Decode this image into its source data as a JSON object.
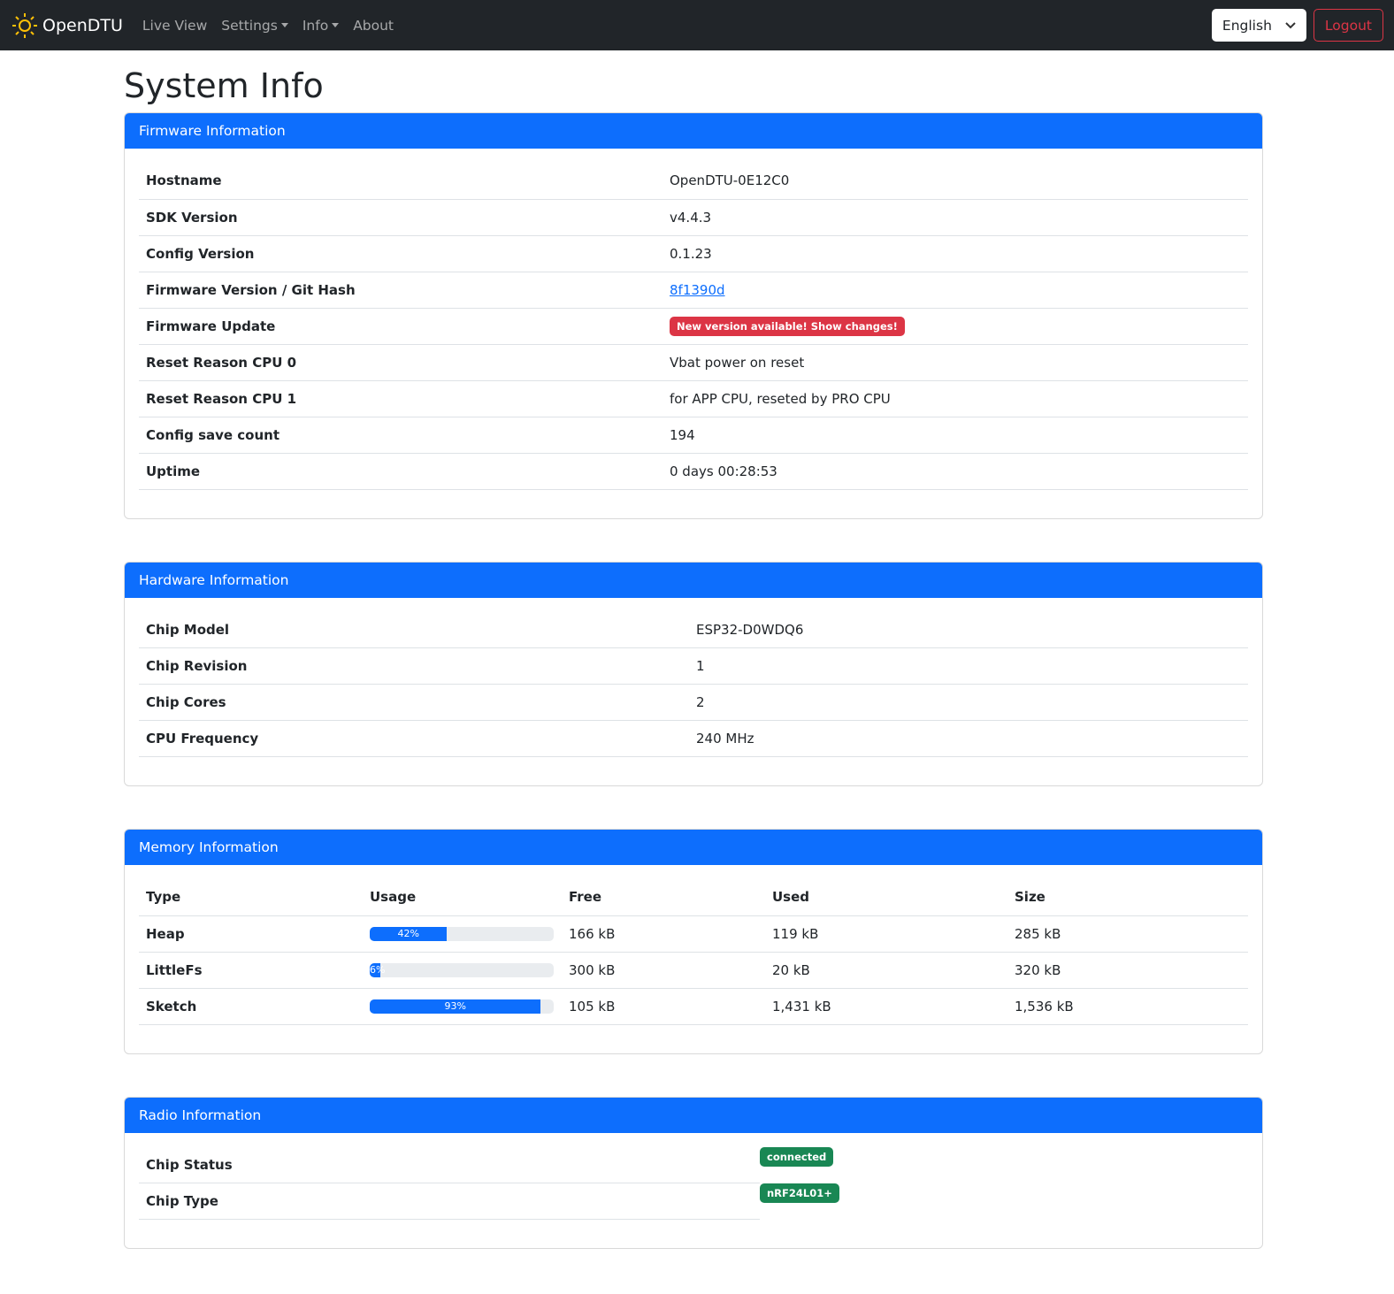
{
  "nav": {
    "brand": "OpenDTU",
    "links": [
      "Live View",
      "Settings",
      "Info",
      "About"
    ],
    "language": "English",
    "logout": "Logout"
  },
  "page_title": "System Info",
  "firmware": {
    "title": "Firmware Information",
    "rows": [
      {
        "label": "Hostname",
        "value": "OpenDTU-0E12C0"
      },
      {
        "label": "SDK Version",
        "value": "v4.4.3"
      },
      {
        "label": "Config Version",
        "value": "0.1.23"
      },
      {
        "label": "Firmware Version / Git Hash",
        "value": "8f1390d"
      },
      {
        "label": "Firmware Update",
        "value": "New version available! Show changes!"
      },
      {
        "label": "Reset Reason CPU 0",
        "value": "Vbat power on reset"
      },
      {
        "label": "Reset Reason CPU 1",
        "value": "for APP CPU, reseted by PRO CPU"
      },
      {
        "label": "Config save count",
        "value": "194"
      },
      {
        "label": "Uptime",
        "value": "0 days 00:28:53"
      }
    ]
  },
  "hardware": {
    "title": "Hardware Information",
    "rows": [
      {
        "label": "Chip Model",
        "value": "ESP32-D0WDQ6"
      },
      {
        "label": "Chip Revision",
        "value": "1"
      },
      {
        "label": "Chip Cores",
        "value": "2"
      },
      {
        "label": "CPU Frequency",
        "value": "240 MHz"
      }
    ]
  },
  "memory": {
    "title": "Memory Information",
    "headers": [
      "Type",
      "Usage",
      "Free",
      "Used",
      "Size"
    ],
    "rows": [
      {
        "type": "Heap",
        "usage": 42,
        "usage_label": "42%",
        "free": "166 kB",
        "used": "119 kB",
        "size": "285 kB"
      },
      {
        "type": "LittleFs",
        "usage": 6,
        "usage_label": "6%",
        "free": "300 kB",
        "used": "20 kB",
        "size": "320 kB"
      },
      {
        "type": "Sketch",
        "usage": 93,
        "usage_label": "93%",
        "free": "105 kB",
        "used": "1,431 kB",
        "size": "1,536 kB"
      }
    ]
  },
  "radio": {
    "title": "Radio Information",
    "rows": [
      {
        "label": "Chip Status",
        "value": "connected"
      },
      {
        "label": "Chip Type",
        "value": "nRF24L01+"
      }
    ]
  },
  "colors": {
    "primary": "#0d6efd",
    "danger": "#dc3545",
    "success": "#198754",
    "navbar": "#212529"
  }
}
